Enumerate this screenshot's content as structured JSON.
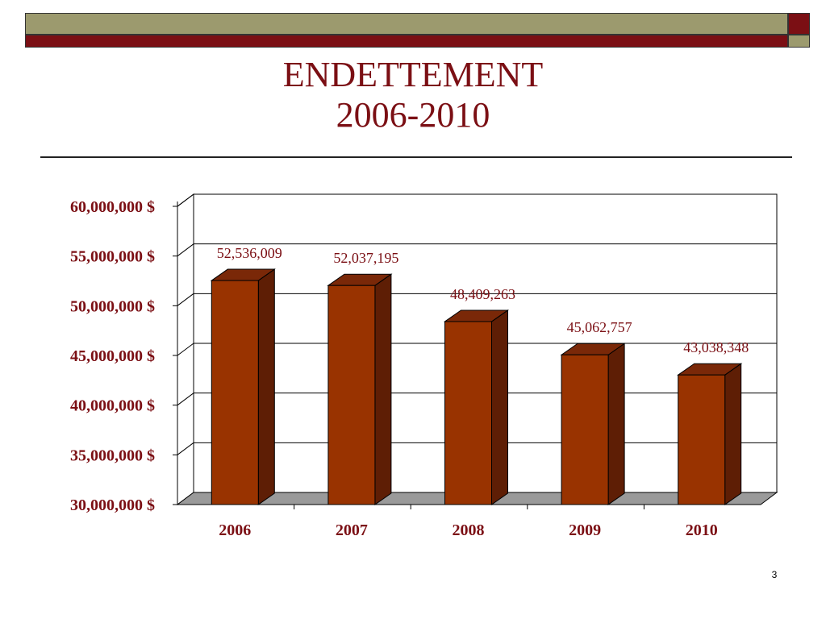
{
  "slide": {
    "title_line1": "ENDETTEMENT",
    "title_line2": "2006-2010",
    "page_number": "3"
  },
  "chart_data": {
    "type": "bar",
    "categories": [
      "2006",
      "2007",
      "2008",
      "2009",
      "2010"
    ],
    "values": [
      52536009,
      52037195,
      48409263,
      45062757,
      43038348
    ],
    "data_labels": [
      "52,536,009",
      "52,037,195",
      "48,409,263",
      "45,062,757",
      "43,038,348"
    ],
    "y_ticks": [
      30000000,
      35000000,
      40000000,
      45000000,
      50000000,
      55000000,
      60000000
    ],
    "y_tick_labels": [
      "30,000,000 $",
      "35,000,000 $",
      "40,000,000 $",
      "45,000,000 $",
      "50,000,000 $",
      "55,000,000 $",
      "60,000,000 $"
    ],
    "ylim": [
      30000000,
      60000000
    ],
    "grid": true,
    "legend": "none",
    "title": "",
    "xlabel": "",
    "ylabel": "",
    "style": "3d",
    "colors": {
      "bar_front": "#993300",
      "bar_side": "#5e1e05",
      "bar_top": "#7a2808",
      "floor": "#9a9a9a",
      "label_text": "#7b0f14",
      "tick_text": "#7b0f14"
    }
  }
}
